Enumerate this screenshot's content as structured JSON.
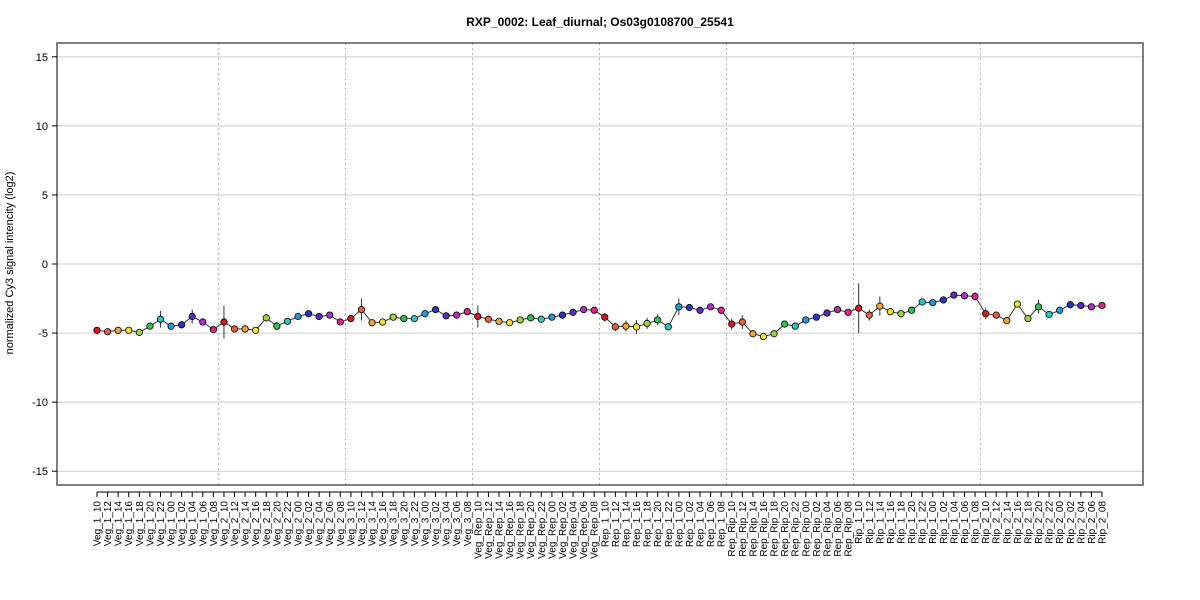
{
  "chart_data": {
    "type": "line",
    "title": "RXP_0002: Leaf_diurnal; Os03g0108700_25541",
    "xlabel": "",
    "ylabel": "normalized Cy3 signal intencity (log2)",
    "ylim": [
      -16,
      16
    ],
    "yticks": [
      -15,
      -10,
      -5,
      0,
      5,
      10,
      15
    ],
    "grid": "horizontal",
    "categories": [
      "Veg_1_10",
      "Veg_1_12",
      "Veg_1_14",
      "Veg_1_16",
      "Veg_1_18",
      "Veg_1_20",
      "Veg_1_22",
      "Veg_1_00",
      "Veg_1_02",
      "Veg_1_04",
      "Veg_1_06",
      "Veg_1_08",
      "Veg_2_10",
      "Veg_2_12",
      "Veg_2_14",
      "Veg_2_16",
      "Veg_2_18",
      "Veg_2_20",
      "Veg_2_22",
      "Veg_2_00",
      "Veg_2_02",
      "Veg_2_04",
      "Veg_2_06",
      "Veg_2_08",
      "Veg_3_10",
      "Veg_3_12",
      "Veg_3_14",
      "Veg_3_16",
      "Veg_3_18",
      "Veg_3_20",
      "Veg_3_22",
      "Veg_3_00",
      "Veg_3_02",
      "Veg_3_04",
      "Veg_3_06",
      "Veg_3_08",
      "Veg_Rep_10",
      "Veg_Rep_12",
      "Veg_Rep_14",
      "Veg_Rep_16",
      "Veg_Rep_18",
      "Veg_Rep_20",
      "Veg_Rep_22",
      "Veg_Rep_00",
      "Veg_Rep_02",
      "Veg_Rep_04",
      "Veg_Rep_06",
      "Veg_Rep_08",
      "Rep_1_10",
      "Rep_1_12",
      "Rep_1_14",
      "Rep_1_16",
      "Rep_1_18",
      "Rep_1_20",
      "Rep_1_22",
      "Rep_1_00",
      "Rep_1_02",
      "Rep_1_04",
      "Rep_1_06",
      "Rep_1_08",
      "Rep_Rip_10",
      "Rep_Rip_12",
      "Rep_Rip_14",
      "Rep_Rip_16",
      "Rep_Rip_18",
      "Rep_Rip_20",
      "Rep_Rip_22",
      "Rep_Rip_00",
      "Rep_Rip_02",
      "Rep_Rip_04",
      "Rep_Rip_06",
      "Rep_Rip_08",
      "Rip_1_10",
      "Rip_1_12",
      "Rip_1_14",
      "Rip_1_16",
      "Rip_1_18",
      "Rip_1_20",
      "Rip_1_22",
      "Rip_1_00",
      "Rip_1_02",
      "Rip_1_04",
      "Rip_1_06",
      "Rip_1_08",
      "Rip_2_10",
      "Rip_2_12",
      "Rip_2_14",
      "Rip_2_16",
      "Rip_2_18",
      "Rip_2_20",
      "Rip_2_22",
      "Rip_2_00",
      "Rip_2_02",
      "Rip_2_04",
      "Rip_2_06",
      "Rip_2_08"
    ],
    "values": [
      -4.8,
      -4.9,
      -4.8,
      -4.8,
      -4.95,
      -4.5,
      -4.0,
      -4.5,
      -4.4,
      -3.8,
      -4.2,
      -4.75,
      -4.2,
      -4.7,
      -4.7,
      -4.8,
      -3.9,
      -4.5,
      -4.15,
      -3.8,
      -3.6,
      -3.8,
      -3.7,
      -4.2,
      -3.95,
      -3.3,
      -4.25,
      -4.2,
      -3.85,
      -3.95,
      -3.95,
      -3.6,
      -3.3,
      -3.75,
      -3.7,
      -3.45,
      -3.8,
      -4.0,
      -4.15,
      -4.25,
      -4.05,
      -3.9,
      -4.0,
      -3.85,
      -3.7,
      -3.5,
      -3.3,
      -3.35,
      -3.85,
      -4.55,
      -4.5,
      -4.55,
      -4.3,
      -4.05,
      -4.55,
      -3.1,
      -3.15,
      -3.35,
      -3.1,
      -3.35,
      -4.35,
      -4.2,
      -5.05,
      -5.25,
      -5.05,
      -4.35,
      -4.5,
      -4.05,
      -3.85,
      -3.55,
      -3.3,
      -3.5,
      -3.2,
      -3.7,
      -3.05,
      -3.45,
      -3.6,
      -3.35,
      -2.75,
      -2.8,
      -2.6,
      -2.25,
      -2.3,
      -2.35,
      -3.6,
      -3.7,
      -4.1,
      -2.9,
      -3.95,
      -3.1,
      -3.65,
      -3.35,
      -2.95,
      -3.0,
      -3.1,
      -3.0
    ],
    "errors": [
      0.1,
      0.1,
      0.1,
      0.1,
      0.1,
      0.1,
      0.6,
      0.1,
      0.1,
      0.5,
      0.1,
      0.1,
      1.2,
      0.1,
      0.3,
      0.1,
      0.1,
      0.3,
      0.1,
      0.1,
      0.1,
      0.1,
      0.1,
      0.1,
      0.1,
      0.8,
      0.1,
      0.1,
      0.1,
      0.1,
      0.1,
      0.1,
      0.1,
      0.1,
      0.1,
      0.1,
      0.8,
      0.1,
      0.1,
      0.1,
      0.1,
      0.1,
      0.1,
      0.1,
      0.1,
      0.1,
      0.1,
      0.1,
      0.3,
      0.3,
      0.4,
      0.5,
      0.4,
      0.4,
      0.1,
      0.6,
      0.1,
      0.1,
      0.1,
      0.1,
      0.4,
      0.5,
      0.1,
      0.1,
      0.1,
      0.2,
      0.1,
      0.1,
      0.1,
      0.1,
      0.1,
      0.1,
      1.8,
      0.4,
      0.7,
      0.1,
      0.1,
      0.1,
      0.1,
      0.1,
      0.1,
      0.1,
      0.1,
      0.3,
      0.4,
      0.2,
      0.1,
      0.1,
      0.1,
      0.5,
      0.1,
      0.1,
      0.1,
      0.1,
      0.1,
      0.1
    ],
    "point_colors": [
      "#d7191c",
      "#e8603a",
      "#f4a23a",
      "#f2e332",
      "#9bd43b",
      "#2ec24f",
      "#26c9bd",
      "#1e9be0",
      "#2437c9",
      "#5a2cc4",
      "#b42cc9",
      "#e0258c",
      "#d7191c",
      "#e8603a",
      "#f4a23a",
      "#f2e332",
      "#9bd43b",
      "#2ec24f",
      "#26c9bd",
      "#1e9be0",
      "#2437c9",
      "#5a2cc4",
      "#b42cc9",
      "#e0258c",
      "#d7191c",
      "#e8603a",
      "#f4a23a",
      "#f2e332",
      "#9bd43b",
      "#2ec24f",
      "#26c9bd",
      "#1e9be0",
      "#2437c9",
      "#5a2cc4",
      "#b42cc9",
      "#e0258c",
      "#d7191c",
      "#e8603a",
      "#f4a23a",
      "#f2e332",
      "#9bd43b",
      "#2ec24f",
      "#26c9bd",
      "#1e9be0",
      "#2437c9",
      "#5a2cc4",
      "#b42cc9",
      "#e0258c",
      "#d7191c",
      "#e8603a",
      "#f4a23a",
      "#f2e332",
      "#9bd43b",
      "#2ec24f",
      "#26c9bd",
      "#1e9be0",
      "#2437c9",
      "#5a2cc4",
      "#b42cc9",
      "#e0258c",
      "#d7191c",
      "#e8603a",
      "#f4a23a",
      "#f2e332",
      "#9bd43b",
      "#2ec24f",
      "#26c9bd",
      "#1e9be0",
      "#2437c9",
      "#5a2cc4",
      "#b42cc9",
      "#e0258c",
      "#d7191c",
      "#e8603a",
      "#f4a23a",
      "#f2e332",
      "#9bd43b",
      "#2ec24f",
      "#26c9bd",
      "#1e9be0",
      "#2437c9",
      "#5a2cc4",
      "#b42cc9",
      "#e0258c",
      "#d7191c",
      "#e8603a",
      "#f4a23a",
      "#f2e332",
      "#9bd43b",
      "#2ec24f",
      "#26c9bd",
      "#1e9be0",
      "#2437c9",
      "#5a2cc4",
      "#b42cc9",
      "#e0258c"
    ],
    "group_separators_after_index": [
      11,
      23,
      35,
      47,
      59,
      71,
      83
    ],
    "line_color": "#333333",
    "grid_color": "#cccccc",
    "separator_color": "#b0b0b0"
  }
}
